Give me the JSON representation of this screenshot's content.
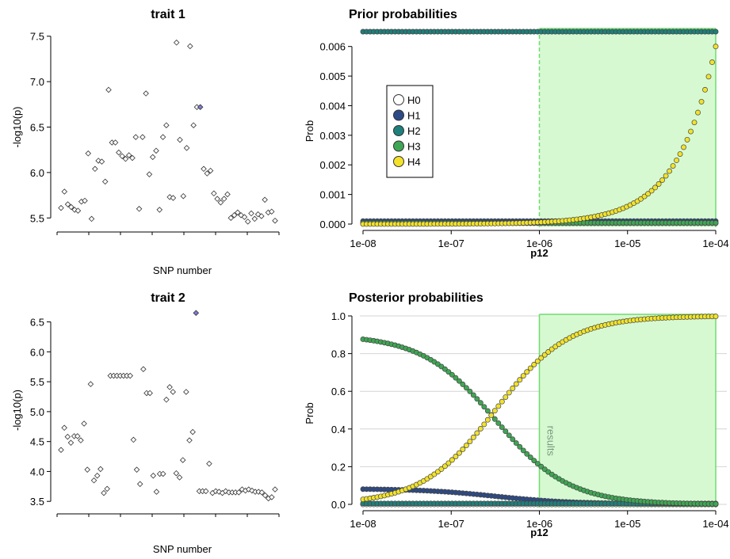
{
  "chart_data": [
    {
      "id": "trait1",
      "type": "scatter",
      "title": "trait 1",
      "xlabel": "SNP number",
      "ylabel": "-log10(p)",
      "ylim": [
        5.45,
        7.55
      ],
      "yticks": [
        "5.5",
        "6.0",
        "6.5",
        "7.0",
        "7.5"
      ],
      "ytick_values": [
        5.5,
        6.0,
        6.5,
        7.0,
        7.5
      ],
      "marker_color": "#ffffff",
      "highlight_color": "#7b7bd6",
      "highlight_index": 41,
      "values": [
        5.61,
        5.79,
        5.65,
        5.62,
        5.59,
        5.58,
        5.68,
        5.69,
        6.21,
        5.49,
        6.04,
        6.13,
        6.12,
        5.9,
        6.91,
        6.33,
        6.33,
        6.22,
        6.18,
        6.15,
        6.19,
        6.16,
        6.39,
        5.6,
        6.39,
        6.87,
        5.98,
        6.17,
        6.24,
        5.59,
        6.39,
        6.52,
        5.73,
        5.72,
        7.43,
        6.36,
        5.74,
        6.27,
        7.39,
        6.52,
        6.72,
        6.72,
        6.04,
        5.99,
        6.02,
        5.77,
        5.71,
        5.67,
        5.71,
        5.76,
        5.5,
        5.53,
        5.56,
        5.53,
        5.51,
        5.46,
        5.55,
        5.49,
        5.54,
        5.52,
        5.7,
        5.56,
        5.57,
        5.47
      ]
    },
    {
      "id": "trait2",
      "type": "scatter",
      "title": "trait 2",
      "xlabel": "SNP number",
      "ylabel": "-log10(p)",
      "ylim": [
        3.45,
        6.6
      ],
      "yticks": [
        "3.5",
        "4.0",
        "4.5",
        "5.0",
        "5.5",
        "6.0",
        "6.5"
      ],
      "ytick_values": [
        3.5,
        4.0,
        4.5,
        5.0,
        5.5,
        6.0,
        6.5
      ],
      "marker_color": "#ffffff",
      "highlight_color": "#7b7bd6",
      "highlight_index": 41,
      "values": [
        4.36,
        4.73,
        4.58,
        4.48,
        4.59,
        4.59,
        4.52,
        4.8,
        4.03,
        5.46,
        3.85,
        3.93,
        4.04,
        3.64,
        3.71,
        5.6,
        5.6,
        5.6,
        5.6,
        5.6,
        5.6,
        5.6,
        4.53,
        4.03,
        3.79,
        5.71,
        5.31,
        5.31,
        3.93,
        3.66,
        3.96,
        3.96,
        5.2,
        5.41,
        5.33,
        3.97,
        3.9,
        4.19,
        5.33,
        4.52,
        4.66,
        6.65,
        3.67,
        3.67,
        3.67,
        4.13,
        3.64,
        3.67,
        3.66,
        3.64,
        3.67,
        3.65,
        3.65,
        3.65,
        3.65,
        3.7,
        3.68,
        3.7,
        3.68,
        3.66,
        3.66,
        3.65,
        3.6,
        3.55,
        3.57,
        3.7
      ]
    },
    {
      "id": "prior",
      "type": "scatter",
      "title": "Prior probabilities",
      "xlabel": "p12",
      "ylabel": "Prob",
      "x_scale": "log10",
      "xlim": [
        1e-08,
        0.0001
      ],
      "xticks": [
        "1e-08",
        "1e-07",
        "1e-06",
        "1e-05",
        "1e-04"
      ],
      "ylim": [
        0,
        0.0065
      ],
      "yticks": [
        "0.000",
        "0.001",
        "0.002",
        "0.003",
        "0.004",
        "0.005",
        "0.006"
      ],
      "ytick_values": [
        0,
        0.001,
        0.002,
        0.003,
        0.004,
        0.005,
        0.006
      ],
      "shaded_region": [
        1e-06,
        0.0001
      ],
      "shade_color": "#d7f9d2",
      "shade_border": "#6fdc6f",
      "n_points": 100,
      "series": [
        {
          "name": "H0",
          "color": "#ffffff",
          "formula": "const",
          "value": 3e-05
        },
        {
          "name": "H1",
          "color": "#2d4a86",
          "formula": "const",
          "value": 0.0001
        },
        {
          "name": "H2",
          "color": "#1f7f7a",
          "formula": "const",
          "value": 0.0065
        },
        {
          "name": "H3",
          "color": "#3fa653",
          "formula": "const",
          "value": 4e-05
        },
        {
          "name": "H4",
          "color": "#f2e22a",
          "formula": "p12",
          "value": null
        }
      ],
      "legend": {
        "position": "upper-left",
        "entries": [
          "H0",
          "H1",
          "H2",
          "H3",
          "H4"
        ]
      }
    },
    {
      "id": "posterior",
      "type": "scatter",
      "title": "Posterior probabilities",
      "xlabel": "p12",
      "ylabel": "Prob",
      "x_scale": "log10",
      "xlim": [
        1e-08,
        0.0001
      ],
      "xticks": [
        "1e-08",
        "1e-07",
        "1e-06",
        "1e-05",
        "1e-04"
      ],
      "ylim": [
        0,
        1.0
      ],
      "yticks": [
        "0.0",
        "0.2",
        "0.4",
        "0.6",
        "0.8",
        "1.0"
      ],
      "ytick_values": [
        0,
        0.2,
        0.4,
        0.6,
        0.8,
        1.0
      ],
      "grid": true,
      "shaded_region": [
        1e-06,
        0.0001
      ],
      "annotation": {
        "text": "results",
        "x": 1e-06
      },
      "n_points": 100,
      "series": [
        {
          "name": "H0",
          "color": "#ffffff",
          "formula": "const",
          "value": 0.0
        },
        {
          "name": "H1",
          "color": "#2d4a86",
          "formula": "h1",
          "value": 0.08
        },
        {
          "name": "H2",
          "color": "#1f7f7a",
          "formula": "const",
          "value": 0.005
        },
        {
          "name": "H3",
          "color": "#3fa653",
          "formula": "h3",
          "value": 0.9
        },
        {
          "name": "H4",
          "color": "#f2e22a",
          "formula": "h4",
          "value": 0.9
        }
      ]
    }
  ]
}
